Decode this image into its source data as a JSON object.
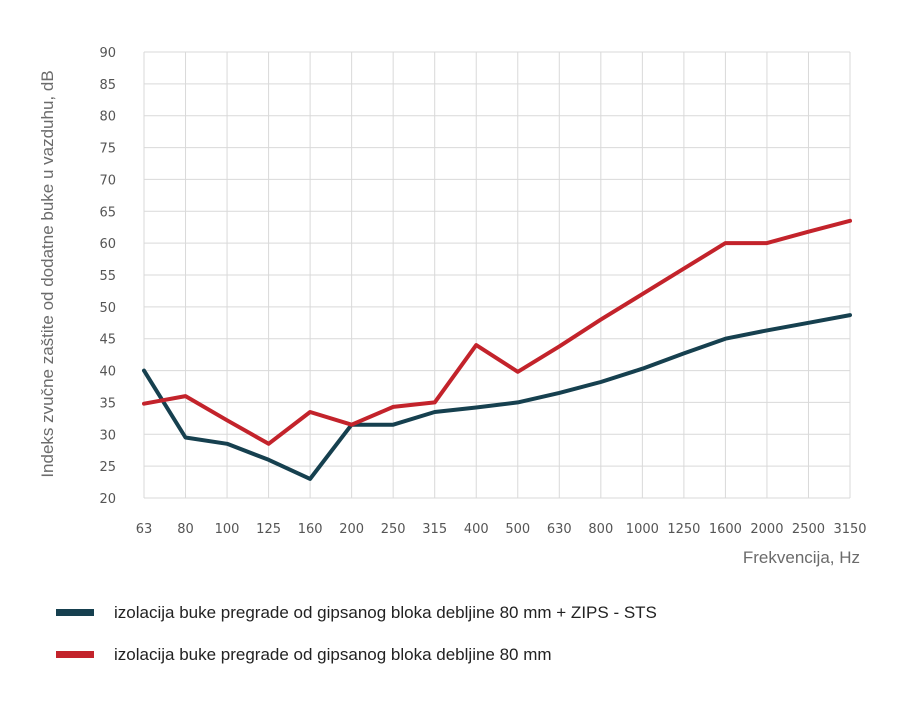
{
  "chart_data": {
    "type": "line",
    "title": "",
    "xlabel": "Frekvencija, Hz",
    "ylabel": "Indeks zvučne zaštite od dodatne buke u vazduhu, dB",
    "categories": [
      "63",
      "80",
      "100",
      "125",
      "160",
      "200",
      "250",
      "315",
      "400",
      "500",
      "630",
      "800",
      "1000",
      "1250",
      "1600",
      "2000",
      "2500",
      "3150"
    ],
    "yticks": [
      "20",
      "25",
      "30",
      "35",
      "40",
      "45",
      "50",
      "55",
      "60",
      "65",
      "70",
      "75",
      "80",
      "85",
      "90"
    ],
    "ylim": [
      20,
      90
    ],
    "grid": true,
    "legend_position": "bottom",
    "series": [
      {
        "name": "izolacija buke pregrade od gipsanog bloka debljine 80 mm + ZIPS - STS",
        "color": "#16404f",
        "values": [
          40,
          29.5,
          28.5,
          26,
          23,
          31.5,
          31.5,
          33.5,
          34.2,
          35,
          36.5,
          38.2,
          40.3,
          42.7,
          45,
          46.3,
          47.5,
          48.7
        ]
      },
      {
        "name": "izolacija buke pregrade od gipsanog bloka debljine 80 mm",
        "color": "#c3232b",
        "values": [
          34.8,
          36,
          32.2,
          28.5,
          33.5,
          31.5,
          34.3,
          35,
          44,
          39.8,
          43.8,
          48,
          52,
          56,
          60,
          60,
          61.8,
          63.5
        ]
      }
    ]
  }
}
